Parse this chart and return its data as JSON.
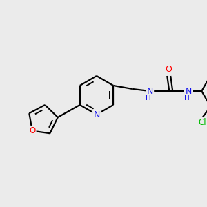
{
  "background_color": "#ebebeb",
  "bond_color": "#000000",
  "atom_colors": {
    "N": "#1010ee",
    "O": "#ff0000",
    "Cl": "#00bb00",
    "H": "#1010ee"
  },
  "figsize": [
    3.0,
    3.0
  ],
  "dpi": 100
}
